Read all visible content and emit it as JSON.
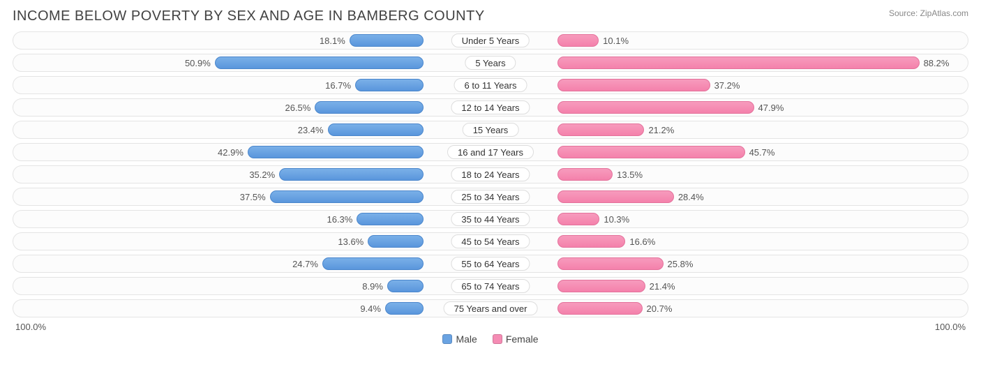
{
  "title": "INCOME BELOW POVERTY BY SEX AND AGE IN BAMBERG COUNTY",
  "source": "Source: ZipAtlas.com",
  "axis_left": "100.0%",
  "axis_right": "100.0%",
  "legend": {
    "male": "Male",
    "female": "Female"
  },
  "colors": {
    "male_fill": "#6aa3e2",
    "female_fill": "#f58cb4",
    "track_border": "#e4e4e4",
    "text": "#555555",
    "title": "#424242",
    "bg": "#ffffff"
  },
  "axis_max": 100.0,
  "label_half_width_pct": 14,
  "rows": [
    {
      "category": "Under 5 Years",
      "male": 18.1,
      "female": 10.1
    },
    {
      "category": "5 Years",
      "male": 50.9,
      "female": 88.2
    },
    {
      "category": "6 to 11 Years",
      "male": 16.7,
      "female": 37.2
    },
    {
      "category": "12 to 14 Years",
      "male": 26.5,
      "female": 47.9
    },
    {
      "category": "15 Years",
      "male": 23.4,
      "female": 21.2
    },
    {
      "category": "16 and 17 Years",
      "male": 42.9,
      "female": 45.7
    },
    {
      "category": "18 to 24 Years",
      "male": 35.2,
      "female": 13.5
    },
    {
      "category": "25 to 34 Years",
      "male": 37.5,
      "female": 28.4
    },
    {
      "category": "35 to 44 Years",
      "male": 16.3,
      "female": 10.3
    },
    {
      "category": "45 to 54 Years",
      "male": 13.6,
      "female": 16.6
    },
    {
      "category": "55 to 64 Years",
      "male": 24.7,
      "female": 25.8
    },
    {
      "category": "65 to 74 Years",
      "male": 8.9,
      "female": 21.4
    },
    {
      "category": "75 Years and over",
      "male": 9.4,
      "female": 20.7
    }
  ]
}
